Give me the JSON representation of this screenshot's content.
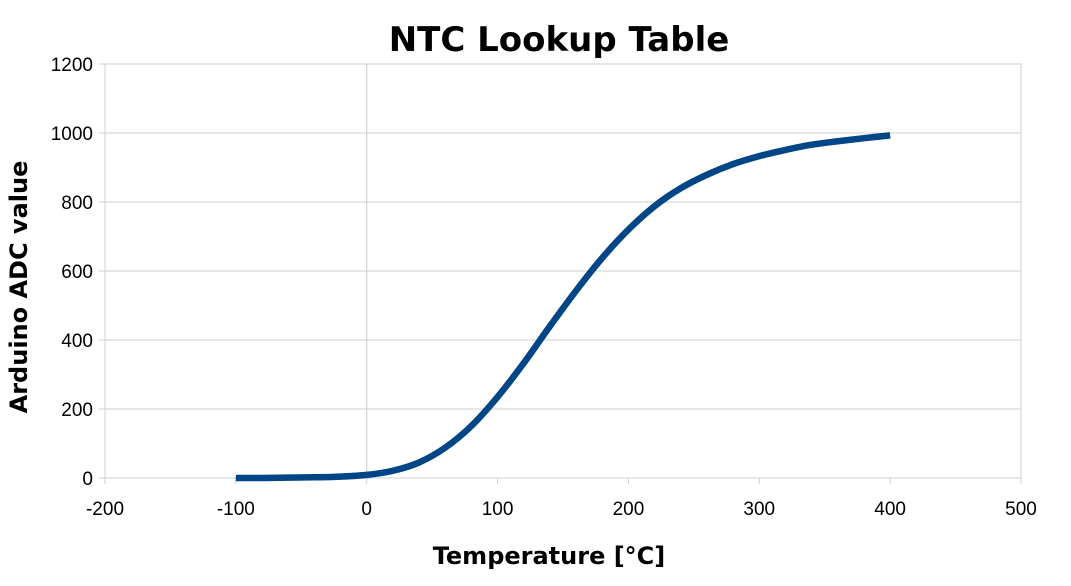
{
  "chart_data": {
    "type": "line",
    "title": "NTC Lookup Table",
    "xlabel": "Temperature [°C]",
    "ylabel": "Arduino ADC value",
    "xlim": [
      -200,
      500
    ],
    "ylim": [
      0,
      1200
    ],
    "xticks": [
      -200,
      -100,
      0,
      100,
      200,
      300,
      400,
      500
    ],
    "yticks": [
      0,
      200,
      400,
      600,
      800,
      1000,
      1200
    ],
    "grid": true,
    "legend": "none",
    "series": [
      {
        "color": "#004586",
        "x": [
          -100,
          -80,
          -60,
          -40,
          -20,
          0,
          20,
          40,
          60,
          80,
          100,
          120,
          140,
          160,
          180,
          200,
          220,
          240,
          260,
          280,
          300,
          320,
          340,
          360,
          380,
          400
        ],
        "y": [
          0,
          0,
          1,
          2,
          4,
          9,
          21,
          45,
          88,
          151,
          235,
          333,
          440,
          543,
          638,
          720,
          788,
          840,
          879,
          910,
          933,
          951,
          966,
          976,
          985,
          993
        ]
      }
    ]
  }
}
